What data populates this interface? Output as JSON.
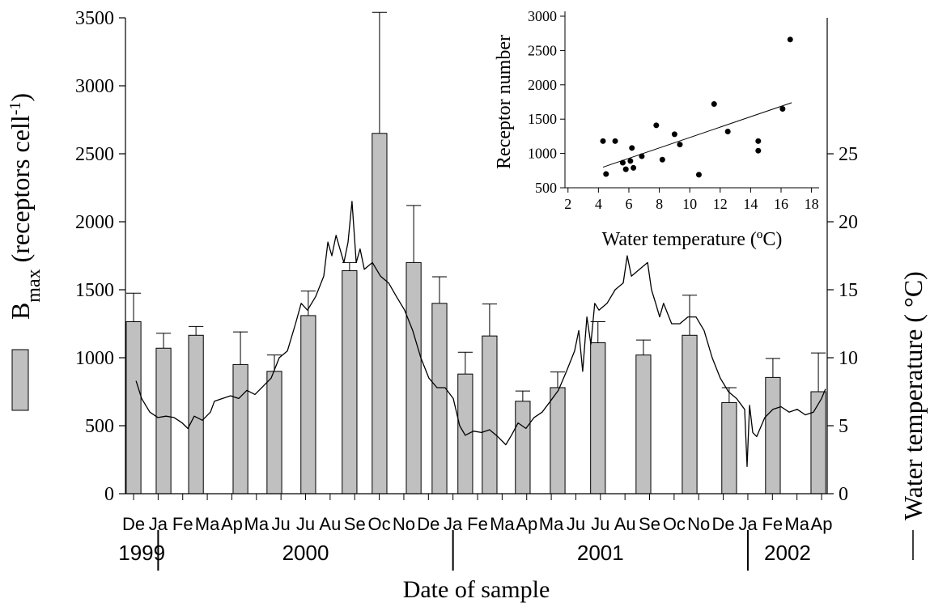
{
  "chart_data": [
    {
      "type": "bar-line",
      "ylabel_parts": [
        "B",
        "max",
        " (receptors cell",
        "-1",
        ")"
      ],
      "y2label": "Water temperature ( °C)",
      "xlabel": "Date of sample",
      "xlim": [
        -0.33,
        28.23
      ],
      "xticks": [
        {
          "value": 0,
          "label": "De"
        },
        {
          "value": 1,
          "label": "Ja"
        },
        {
          "value": 2,
          "label": "Fe"
        },
        {
          "value": 3,
          "label": "Ma"
        },
        {
          "value": 4,
          "label": "Ap"
        },
        {
          "value": 5,
          "label": "Ma"
        },
        {
          "value": 6,
          "label": "Ju"
        },
        {
          "value": 7,
          "label": "Ju"
        },
        {
          "value": 8,
          "label": "Au"
        },
        {
          "value": 9,
          "label": "Se"
        },
        {
          "value": 10,
          "label": "Oc"
        },
        {
          "value": 11,
          "label": "No"
        },
        {
          "value": 12,
          "label": "De"
        },
        {
          "value": 13,
          "label": "Ja"
        },
        {
          "value": 14,
          "label": "Fe"
        },
        {
          "value": 15,
          "label": "Ma"
        },
        {
          "value": 16,
          "label": "Ap"
        },
        {
          "value": 17,
          "label": "Ma"
        },
        {
          "value": 18,
          "label": "Ju"
        },
        {
          "value": 19,
          "label": "Ju"
        },
        {
          "value": 20,
          "label": "Au"
        },
        {
          "value": 21,
          "label": "Se"
        },
        {
          "value": 22,
          "label": "Oc"
        },
        {
          "value": 23,
          "label": "No"
        },
        {
          "value": 24,
          "label": "De"
        },
        {
          "value": 25,
          "label": "Ja"
        },
        {
          "value": 26,
          "label": "Fe"
        },
        {
          "value": 27,
          "label": "Ma"
        },
        {
          "value": 28,
          "label": "Ap"
        }
      ],
      "years": [
        "1999",
        "2000",
        "2001",
        "2002"
      ],
      "year_breaks": [
        1,
        13,
        25
      ],
      "ylim": [
        0,
        3500
      ],
      "yticks": [
        0,
        500,
        1000,
        1500,
        2000,
        2500,
        3000,
        3500
      ],
      "y2lim": [
        0,
        35
      ],
      "y2ticks": [
        0,
        5,
        10,
        15,
        20,
        25
      ],
      "series": [
        {
          "type": "bar",
          "color": "#c0c0c0",
          "x": [
            0,
            1.22,
            2.54,
            4.35,
            5.73,
            7.11,
            8.79,
            10.01,
            11.4,
            12.45,
            13.5,
            14.49,
            15.84,
            17.26,
            18.9,
            20.75,
            22.63,
            24.24,
            26.02,
            27.87
          ],
          "values": [
            1265,
            1070,
            1165,
            950,
            900,
            1310,
            1640,
            2650,
            1700,
            1400,
            880,
            1160,
            680,
            780,
            1110,
            1020,
            1165,
            670,
            855,
            750
          ],
          "errors": [
            210,
            110,
            65,
            240,
            120,
            180,
            60,
            890,
            420,
            195,
            160,
            235,
            75,
            115,
            155,
            110,
            295,
            110,
            140,
            285
          ]
        },
        {
          "type": "line",
          "axis": "y2",
          "color": "#000000",
          "x": [
            0.1,
            0.33,
            0.66,
            0.99,
            1.32,
            1.65,
            1.98,
            2.21,
            2.47,
            2.8,
            3.13,
            3.29,
            3.62,
            3.95,
            4.28,
            4.61,
            4.94,
            5.27,
            5.6,
            5.93,
            6.26,
            6.59,
            6.82,
            7.08,
            7.41,
            7.74,
            7.91,
            8.07,
            8.24,
            8.4,
            8.56,
            8.73,
            8.89,
            9.06,
            9.22,
            9.39,
            9.72,
            10.05,
            10.38,
            10.7,
            11.03,
            11.36,
            11.69,
            12.02,
            12.35,
            12.68,
            13.01,
            13.27,
            13.5,
            13.83,
            14.16,
            14.49,
            14.82,
            15.15,
            15.38,
            15.65,
            15.97,
            16.3,
            16.63,
            16.96,
            17.29,
            17.62,
            17.95,
            18.12,
            18.28,
            18.45,
            18.61,
            18.77,
            18.94,
            19.27,
            19.6,
            19.93,
            20.09,
            20.26,
            20.59,
            20.92,
            21.08,
            21.25,
            21.41,
            21.57,
            21.9,
            22.23,
            22.56,
            22.89,
            23.22,
            23.55,
            23.88,
            24.21,
            24.54,
            24.87,
            24.97,
            25.07,
            25.2,
            25.36,
            25.69,
            26.02,
            26.35,
            26.68,
            27.01,
            27.34,
            27.67,
            28.0,
            28.16
          ],
          "values": [
            8.3,
            7.0,
            6.0,
            5.6,
            5.7,
            5.6,
            5.2,
            4.8,
            5.7,
            5.4,
            6.0,
            6.8,
            7.0,
            7.2,
            7.0,
            7.6,
            7.3,
            7.9,
            8.5,
            10.0,
            10.5,
            12.5,
            14.0,
            13.5,
            14.5,
            16.0,
            18.5,
            17.5,
            19.0,
            18.0,
            17.0,
            18.5,
            21.5,
            17.0,
            18.0,
            16.5,
            17.0,
            16.0,
            15.5,
            14.5,
            13.5,
            12.0,
            10.0,
            8.5,
            7.8,
            7.8,
            7.0,
            5.0,
            4.3,
            4.6,
            4.5,
            4.7,
            4.2,
            3.6,
            4.3,
            5.2,
            4.8,
            5.6,
            6.0,
            6.8,
            7.6,
            9.0,
            10.5,
            12.0,
            9.0,
            13.0,
            11.0,
            14.0,
            13.5,
            14.0,
            15.0,
            15.5,
            17.5,
            16.0,
            16.5,
            17.0,
            15.0,
            14.0,
            13.0,
            14.0,
            12.5,
            12.5,
            13.0,
            13.0,
            12.0,
            10.0,
            8.5,
            7.5,
            7.0,
            6.2,
            2.0,
            6.5,
            4.5,
            4.2,
            5.6,
            6.2,
            6.4,
            6.0,
            6.2,
            5.8,
            6.0,
            7.0,
            7.7
          ]
        }
      ]
    },
    {
      "type": "scatter",
      "xlabel": "Water temperature (ºC)",
      "ylabel": "Receptor number",
      "xlim": [
        1.8,
        18.5
      ],
      "ylim": [
        500,
        3000
      ],
      "xticks": [
        2,
        4,
        6,
        8,
        10,
        12,
        14,
        16,
        18
      ],
      "yticks": [
        500,
        1000,
        1500,
        2000,
        2500,
        3000
      ],
      "color": "#000000",
      "x": [
        4.3,
        4.5,
        5.1,
        5.6,
        5.8,
        6.2,
        6.1,
        6.3,
        6.85,
        7.8,
        8.2,
        9.0,
        9.35,
        10.6,
        11.6,
        12.5,
        14.5,
        14.5,
        16.1,
        16.6
      ],
      "values": [
        1180,
        700,
        1180,
        865,
        770,
        1080,
        890,
        790,
        960,
        1410,
        910,
        1280,
        1130,
        690,
        1720,
        1320,
        1180,
        1040,
        1650,
        2660
      ],
      "fit": {
        "x": [
          4.3,
          16.7
        ],
        "values": [
          800,
          1740
        ]
      }
    }
  ]
}
